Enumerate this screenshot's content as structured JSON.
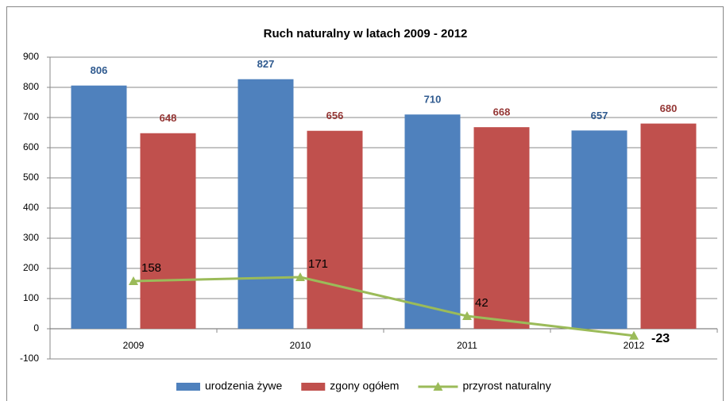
{
  "chart_data": {
    "type": "bar",
    "title": "Ruch naturalny w latach 2009 - 2012",
    "categories": [
      "2009",
      "2010",
      "2011",
      "2012"
    ],
    "series": [
      {
        "name": "urodzenia żywe",
        "color": "#4f81bd",
        "label_color": "#2f5a8f",
        "values": [
          806,
          827,
          710,
          657
        ]
      },
      {
        "name": "zgony ogółem",
        "color": "#c0504d",
        "label_color": "#943634",
        "values": [
          648,
          656,
          668,
          680
        ]
      },
      {
        "name": "przyrost naturalny",
        "type": "line",
        "color": "#9bbb59",
        "values": [
          158,
          171,
          42,
          -23
        ]
      }
    ],
    "ylim": [
      -100,
      900
    ],
    "yticks": [
      -100,
      0,
      100,
      200,
      300,
      400,
      500,
      600,
      700,
      800,
      900
    ],
    "grid": true,
    "legend": "bottom"
  }
}
